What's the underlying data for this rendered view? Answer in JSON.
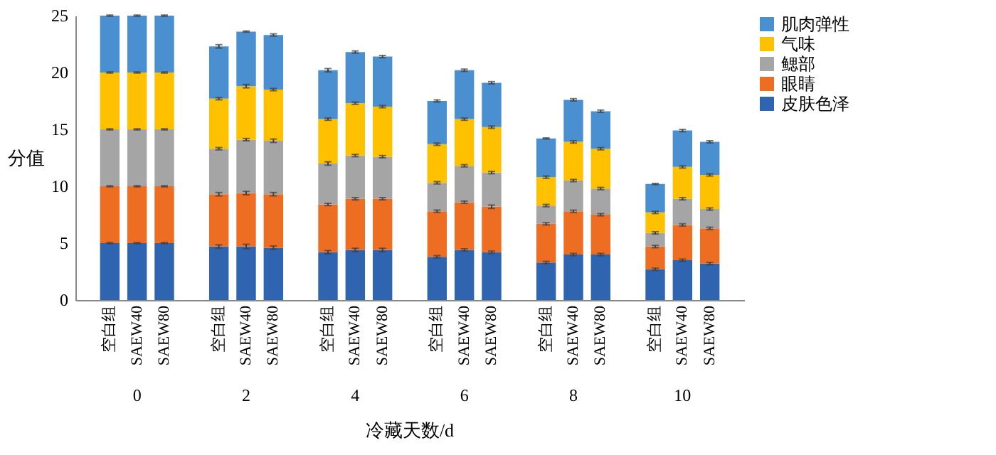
{
  "chart_data": {
    "type": "bar",
    "stacked": true,
    "categories": [
      "空白组",
      "SAEW40",
      "SAEW80",
      "空白组",
      "SAEW40",
      "SAEW80",
      "空白组",
      "SAEW40",
      "SAEW80",
      "空白组",
      "SAEW40",
      "SAEW80",
      "空白组",
      "SAEW40",
      "SAEW80",
      "空白组",
      "SAEW40",
      "SAEW80"
    ],
    "series": [
      {
        "name": "皮肤色泽",
        "color": "#2e64b0",
        "values": [
          5,
          5,
          5,
          4.7,
          4.7,
          4.6,
          4.2,
          4.4,
          4.4,
          3.8,
          4.4,
          4.2,
          3.3,
          4.0,
          4.0,
          2.7,
          3.5,
          3.2
        ],
        "errors": [
          0.05,
          0.05,
          0.05,
          0.15,
          0.2,
          0.15,
          0.15,
          0.15,
          0.15,
          0.1,
          0.1,
          0.1,
          0.1,
          0.1,
          0.1,
          0.1,
          0.1,
          0.1
        ]
      },
      {
        "name": "眼睛",
        "color": "#ed6d22",
        "values": [
          5,
          5,
          5,
          4.6,
          4.7,
          4.7,
          4.2,
          4.5,
          4.5,
          4.0,
          4.2,
          4.0,
          3.4,
          3.8,
          3.5,
          2.0,
          3.1,
          3.1
        ],
        "errors": [
          0.05,
          0.05,
          0.05,
          0.15,
          0.15,
          0.15,
          0.1,
          0.1,
          0.1,
          0.1,
          0.1,
          0.15,
          0.1,
          0.1,
          0.1,
          0.1,
          0.1,
          0.1
        ]
      },
      {
        "name": "鳃部",
        "color": "#a5a5a5",
        "values": [
          5,
          5,
          5,
          4.0,
          4.7,
          4.7,
          3.6,
          3.8,
          3.7,
          2.5,
          3.2,
          3.0,
          1.6,
          2.7,
          2.3,
          1.2,
          2.3,
          1.7
        ],
        "errors": [
          0.05,
          0.05,
          0.05,
          0.1,
          0.1,
          0.15,
          0.15,
          0.1,
          0.1,
          0.1,
          0.1,
          0.1,
          0.1,
          0.1,
          0.1,
          0.1,
          0.1,
          0.1
        ]
      },
      {
        "name": "气味",
        "color": "#ffc000",
        "values": [
          5,
          5,
          5,
          4.4,
          4.7,
          4.5,
          3.9,
          4.6,
          4.4,
          3.4,
          4.1,
          4.0,
          2.5,
          3.4,
          3.5,
          1.8,
          2.8,
          3.0
        ],
        "errors": [
          0.05,
          0.05,
          0.05,
          0.1,
          0.15,
          0.1,
          0.1,
          0.1,
          0.1,
          0.1,
          0.1,
          0.1,
          0.1,
          0.1,
          0.1,
          0.1,
          0.1,
          0.1
        ]
      },
      {
        "name": "肌肉弹性",
        "color": "#4a90d0",
        "values": [
          5,
          5,
          5,
          4.6,
          4.8,
          4.8,
          4.3,
          4.5,
          4.4,
          3.8,
          4.3,
          3.9,
          3.4,
          3.7,
          3.3,
          2.5,
          3.2,
          2.9
        ],
        "errors": [
          0.05,
          0.05,
          0.05,
          0.15,
          0.05,
          0.1,
          0.15,
          0.1,
          0.1,
          0.1,
          0.1,
          0.1,
          0.05,
          0.1,
          0.1,
          0.05,
          0.1,
          0.1
        ]
      }
    ],
    "ylabel": "分值",
    "xlabel": "冷藏天数/d",
    "annotations": [
      "0",
      "2",
      "4",
      "6",
      "8",
      "10"
    ],
    "ylim": [
      0,
      25
    ],
    "yticks": [
      0,
      5,
      10,
      15,
      20,
      25
    ],
    "grid": false,
    "legend": "right"
  }
}
